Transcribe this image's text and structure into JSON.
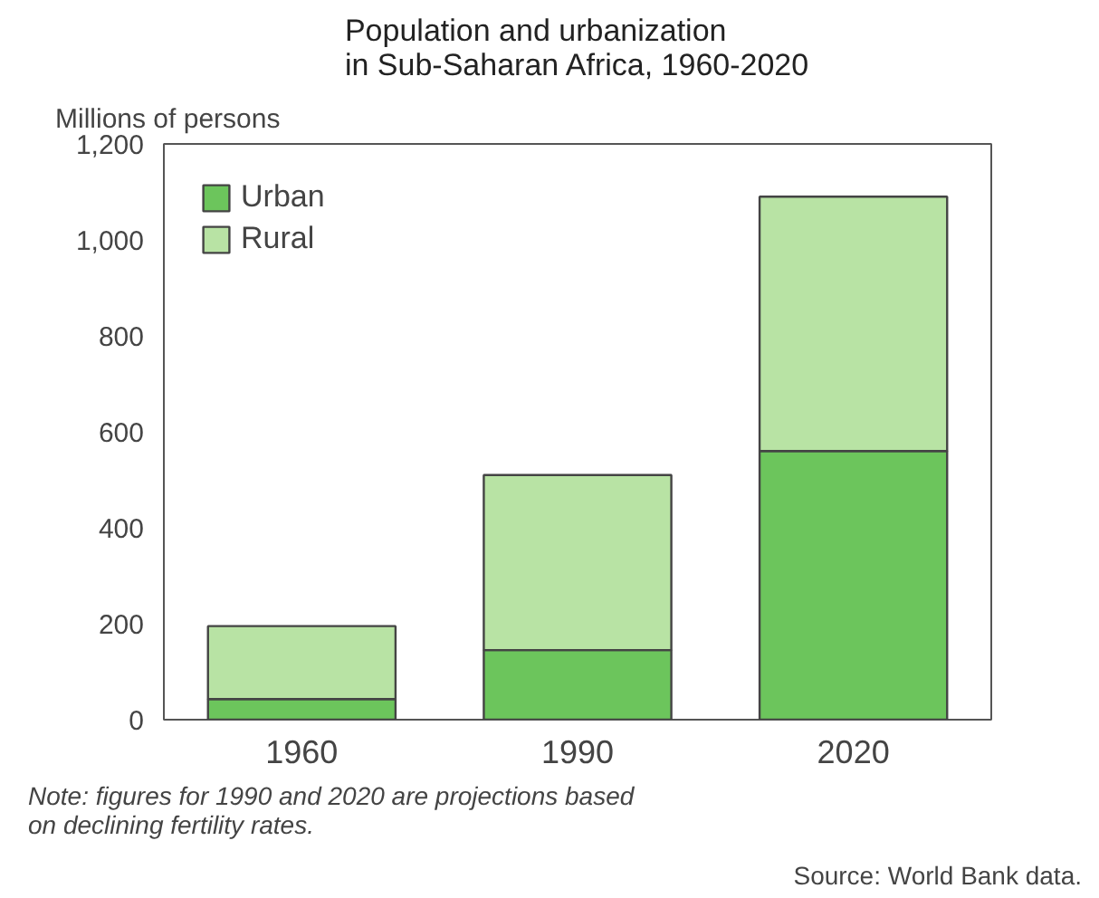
{
  "chart_data": {
    "type": "bar",
    "title": "Population and urbanization\nin Sub-Saharan Africa, 1960-2020",
    "ylabel": "Millions of persons",
    "categories": [
      "1960",
      "1990",
      "2020"
    ],
    "series": [
      {
        "name": "Urban",
        "color": "#6cc55c",
        "values": [
          43,
          145,
          560
        ]
      },
      {
        "name": "Rural",
        "color": "#b8e3a4",
        "values": [
          152,
          365,
          530
        ]
      }
    ],
    "stacked": true,
    "ylim": [
      0,
      1200
    ],
    "yticks": [
      0,
      200,
      400,
      600,
      800,
      {
        "value": 1000,
        "label": "1,000"
      },
      {
        "value": 1200,
        "label": "1,200"
      }
    ],
    "grid": false,
    "legend": "top left",
    "annotations": [
      "Note: figures for 1990 and 2020 are projections based\non declining fertility rates.",
      "Source: World Bank data."
    ]
  }
}
